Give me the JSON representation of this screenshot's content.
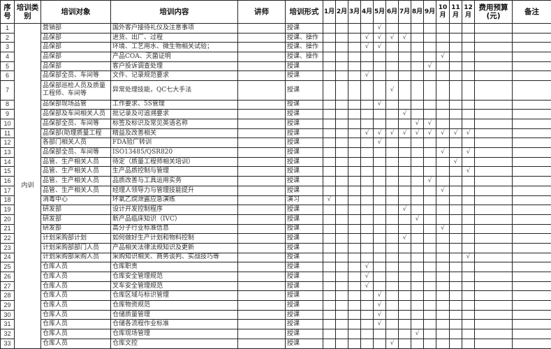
{
  "headers": {
    "index": "序号",
    "category": "培训类别",
    "target": "培训对象",
    "content": "培训内容",
    "trainer": "讲师",
    "form": "培训形式",
    "months": [
      "1月",
      "2月",
      "3月",
      "4月",
      "5月",
      "6月",
      "7月",
      "8月",
      "9月",
      "10月",
      "11月",
      "12月"
    ],
    "budget": "费用预算(元)",
    "remarks": "备注"
  },
  "category": "内训",
  "check_mark": "√",
  "rows": [
    {
      "no": "1",
      "target": "营销部",
      "content": "国外客户接待礼仪及注意事项",
      "form": "授课",
      "months": [
        5
      ]
    },
    {
      "no": "2",
      "target": "品保部",
      "content": "进货、出厂、过程",
      "form": "授课、操作",
      "months": [
        4,
        5,
        6,
        7
      ]
    },
    {
      "no": "3",
      "target": "品保部",
      "content": "环境、工艺用水、微生物相关试验；",
      "form": "授课、操作",
      "months": [
        4,
        5
      ]
    },
    {
      "no": "4",
      "target": "品保部",
      "content": "产品COA、灭菌证明",
      "form": "授课、操作",
      "months": [
        10
      ]
    },
    {
      "no": "5",
      "target": "品保部",
      "content": "客户投诉调查处理",
      "form": "授课",
      "months": [
        9
      ]
    },
    {
      "no": "6",
      "target": "品保部全员、车间等",
      "content": "文件、记录规范要求",
      "form": "授课",
      "months": [
        4
      ]
    },
    {
      "no": "7",
      "target": "品保部巡检人员及质量工程师、车间等",
      "content": "异常处理技能，QC七大手法",
      "form": "授课",
      "months": [
        6
      ]
    },
    {
      "no": "8",
      "target": "品保部现场品管",
      "content": "工作要求、5S管理",
      "form": "授课",
      "months": [
        5
      ]
    },
    {
      "no": "9",
      "target": "品保部及车间相关人员",
      "content": "批记录及可追溯要求",
      "form": "授课",
      "months": [
        7
      ]
    },
    {
      "no": "10",
      "target": "品保部全员、车间等",
      "content": "标签及标识及常见英语名称",
      "form": "授课",
      "months": [
        8,
        9
      ]
    },
    {
      "no": "11",
      "target": "品保部(助理质量工程",
      "content": "精益及改善相关",
      "form": "授课",
      "months": [
        4,
        5,
        6,
        7,
        8,
        9,
        10,
        11,
        12
      ]
    },
    {
      "no": "12",
      "target": "各部门相关人员",
      "content": "FDA验厂转训",
      "form": "授课",
      "months": [
        5
      ]
    },
    {
      "no": "13",
      "target": "品保部全员、车间等",
      "content": "ISO13485/QSR820",
      "form": "授课",
      "months": [
        10,
        12
      ]
    },
    {
      "no": "14",
      "target": "品管、生产相关人员",
      "content": "待定（质量工程师相关培训）",
      "form": "授课",
      "months": [
        11
      ]
    },
    {
      "no": "15",
      "target": "品管、生产相关人员",
      "content": "生产品质控制与管理",
      "form": "授课",
      "months": [
        12
      ]
    },
    {
      "no": "16",
      "target": "品管、生产相关人员",
      "content": "品质改善与工具运用实务",
      "form": "授课",
      "months": [
        9
      ]
    },
    {
      "no": "17",
      "target": "品管、生产相关人员",
      "content": "经理人领导力与管理技能提升",
      "form": "授课",
      "months": [
        10
      ]
    },
    {
      "no": "18",
      "target": "消毒中心",
      "content": "环氧乙烷泄露应急演练",
      "form": "演习",
      "months": [
        1
      ]
    },
    {
      "no": "19",
      "target": "研发部",
      "content": "设计开发控制程序",
      "form": "授课",
      "months": [
        7
      ]
    },
    {
      "no": "20",
      "target": "研发部",
      "content": "新产品临床知识（IVC）",
      "form": "授课",
      "months": [
        8
      ]
    },
    {
      "no": "21",
      "target": "研发部",
      "content": "高分子行业标准信息",
      "form": "授课",
      "months": [
        10
      ]
    },
    {
      "no": "22",
      "target": "计划采购部计划",
      "content": "如何做好生产计划和物料控制",
      "form": "授课",
      "months": [
        7
      ]
    },
    {
      "no": "23",
      "target": "计划采购部部门人员",
      "content": "产品相关法律法规知识及更新",
      "form": "授课",
      "months": []
    },
    {
      "no": "24",
      "target": "计划采购部采购人员",
      "content": "采购知识相关、商务谈判、实战技巧等",
      "form": "授课",
      "months": [
        12
      ]
    },
    {
      "no": "25",
      "target": "仓库人员",
      "content": "仓库职责",
      "form": "授课",
      "months": [
        4
      ]
    },
    {
      "no": "26",
      "target": "仓库人员",
      "content": "仓库安全管理规范",
      "form": "授课",
      "months": [
        4
      ]
    },
    {
      "no": "27",
      "target": "仓库人员",
      "content": "叉车安全管理规范",
      "form": "授课",
      "months": [
        4
      ]
    },
    {
      "no": "28",
      "target": "仓库人员",
      "content": "仓库区域与标识管理",
      "form": "授课",
      "months": [
        5
      ]
    },
    {
      "no": "29",
      "target": "仓库人员",
      "content": "仓库物资规范",
      "form": "授课",
      "months": [
        5
      ]
    },
    {
      "no": "30",
      "target": "仓库人员",
      "content": "仓储质量管理",
      "form": "授课",
      "months": [
        5
      ]
    },
    {
      "no": "31",
      "target": "仓库人员",
      "content": "仓储各流程作业标准",
      "form": "授课",
      "months": [
        5
      ]
    },
    {
      "no": "32",
      "target": "仓库人员",
      "content": "仓库现场管理",
      "form": "授课",
      "months": [
        8
      ]
    },
    {
      "no": "33",
      "target": "仓库人员",
      "content": "仓库文控",
      "form": "授课",
      "months": [
        6
      ]
    }
  ]
}
